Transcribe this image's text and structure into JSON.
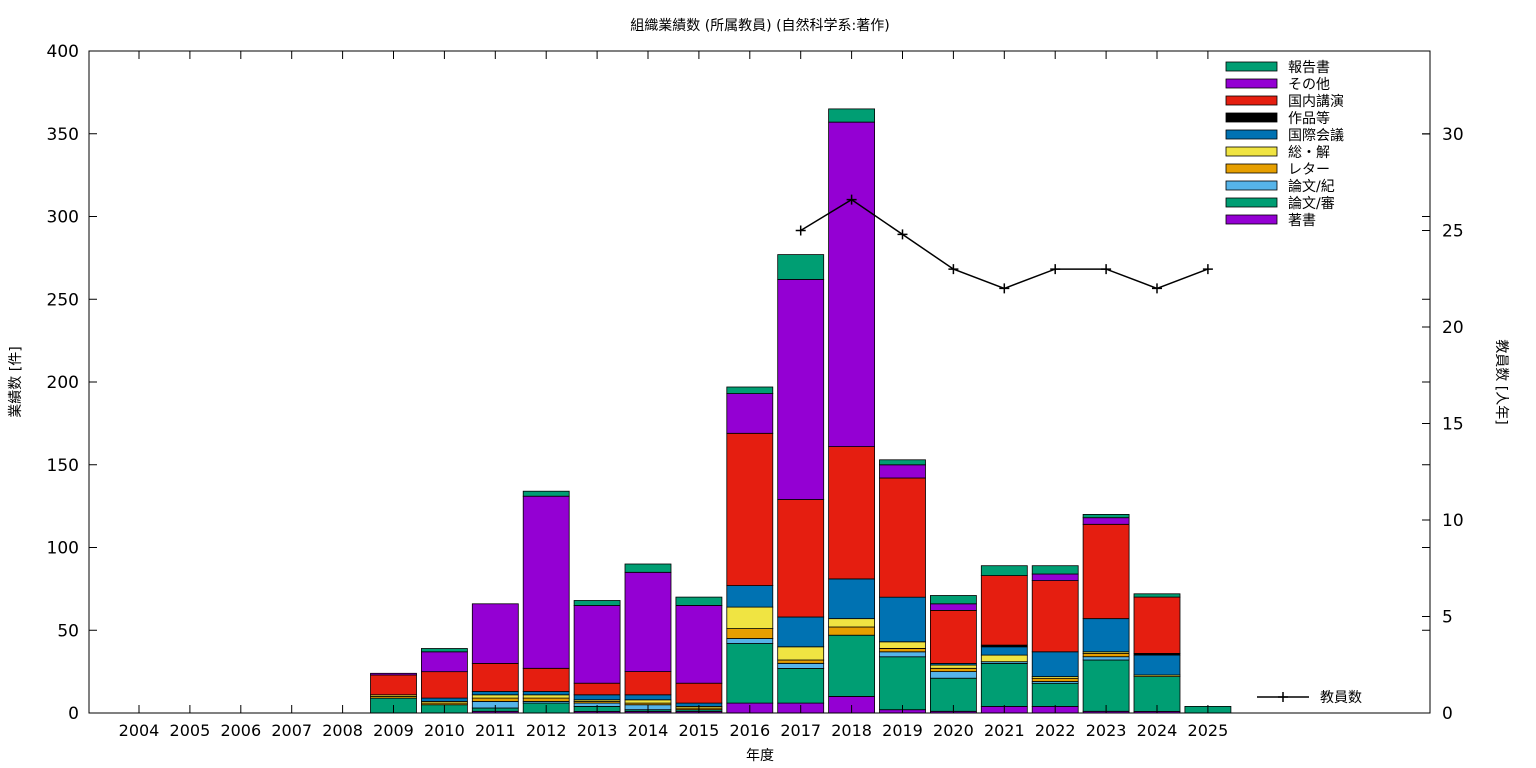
{
  "chart_data": {
    "type": "bar",
    "stacked": true,
    "title": "組織業績数 (所属教員) (自然科学系:著作)",
    "xlabel": "年度",
    "ylabel": "業績数 [件]",
    "y2label": "教員数 [人年]",
    "ylim": [
      0,
      400
    ],
    "yticks": [
      0,
      50,
      100,
      150,
      200,
      250,
      300,
      350,
      400
    ],
    "y2lim": [
      0,
      34.3
    ],
    "y2ticks": [
      0,
      5,
      10,
      15,
      20,
      25,
      30
    ],
    "grid": false,
    "legend_position": "top-right",
    "categories": [
      "2004",
      "2005",
      "2006",
      "2007",
      "2008",
      "2009",
      "2010",
      "2011",
      "2012",
      "2013",
      "2014",
      "2015",
      "2016",
      "2017",
      "2018",
      "2019",
      "2020",
      "2021",
      "2022",
      "2023",
      "2024",
      "2025"
    ],
    "series": [
      {
        "name": "著書",
        "color": "#9400d3",
        "values": [
          0,
          0,
          0,
          0,
          0,
          0,
          0,
          1,
          0,
          1,
          1,
          1,
          6,
          6,
          10,
          2,
          1,
          4,
          4,
          1,
          1,
          0
        ]
      },
      {
        "name": "論文/審",
        "color": "#009e73",
        "values": [
          0,
          0,
          0,
          0,
          0,
          9,
          5,
          2,
          6,
          3,
          1,
          1,
          36,
          21,
          37,
          32,
          20,
          26,
          14,
          31,
          21,
          0
        ]
      },
      {
        "name": "論文/紀",
        "color": "#56b4e9",
        "values": [
          0,
          0,
          0,
          0,
          0,
          0,
          0,
          4,
          1,
          2,
          3,
          0,
          3,
          3,
          0,
          3,
          4,
          1,
          1,
          2,
          0,
          0
        ]
      },
      {
        "name": "レター",
        "color": "#e69f00",
        "values": [
          0,
          0,
          0,
          0,
          0,
          1,
          1,
          2,
          2,
          1,
          1,
          1,
          6,
          2,
          5,
          2,
          2,
          0,
          2,
          2,
          0,
          0
        ]
      },
      {
        "name": "総・解",
        "color": "#f0e442",
        "values": [
          0,
          0,
          0,
          0,
          0,
          1,
          1,
          2,
          2,
          1,
          2,
          1,
          13,
          8,
          5,
          4,
          2,
          4,
          1,
          1,
          1,
          0
        ]
      },
      {
        "name": "国際会議",
        "color": "#0072b2",
        "values": [
          0,
          0,
          0,
          0,
          0,
          0,
          2,
          2,
          2,
          3,
          3,
          2,
          13,
          18,
          24,
          27,
          1,
          5,
          15,
          20,
          12,
          0
        ]
      },
      {
        "name": "作品等",
        "color": "#000000",
        "values": [
          0,
          0,
          0,
          0,
          0,
          0,
          0,
          0,
          0,
          0,
          0,
          0,
          0,
          0,
          0,
          0,
          0,
          1,
          0,
          0,
          1,
          0
        ]
      },
      {
        "name": "国内講演",
        "color": "#e51e10",
        "values": [
          0,
          0,
          0,
          0,
          0,
          12,
          16,
          17,
          14,
          7,
          14,
          12,
          92,
          71,
          80,
          72,
          32,
          42,
          43,
          57,
          34,
          0
        ]
      },
      {
        "name": "その他",
        "color": "#9400d3",
        "values": [
          0,
          0,
          0,
          0,
          0,
          1,
          12,
          36,
          104,
          47,
          60,
          47,
          24,
          133,
          196,
          8,
          4,
          0,
          4,
          4,
          0,
          0
        ]
      },
      {
        "name": "報告書",
        "color": "#009e73",
        "values": [
          0,
          0,
          0,
          0,
          0,
          0,
          2,
          0,
          3,
          3,
          5,
          5,
          4,
          15,
          8,
          3,
          5,
          6,
          5,
          2,
          2,
          4
        ]
      }
    ],
    "line_series": {
      "name": "教員数",
      "color": "#000000",
      "axis": "y2",
      "x": [
        "2017",
        "2018",
        "2019",
        "2020",
        "2021",
        "2022",
        "2023",
        "2024",
        "2025"
      ],
      "values": [
        25,
        26.6,
        24.8,
        23,
        22,
        23,
        23,
        22,
        23
      ]
    }
  }
}
